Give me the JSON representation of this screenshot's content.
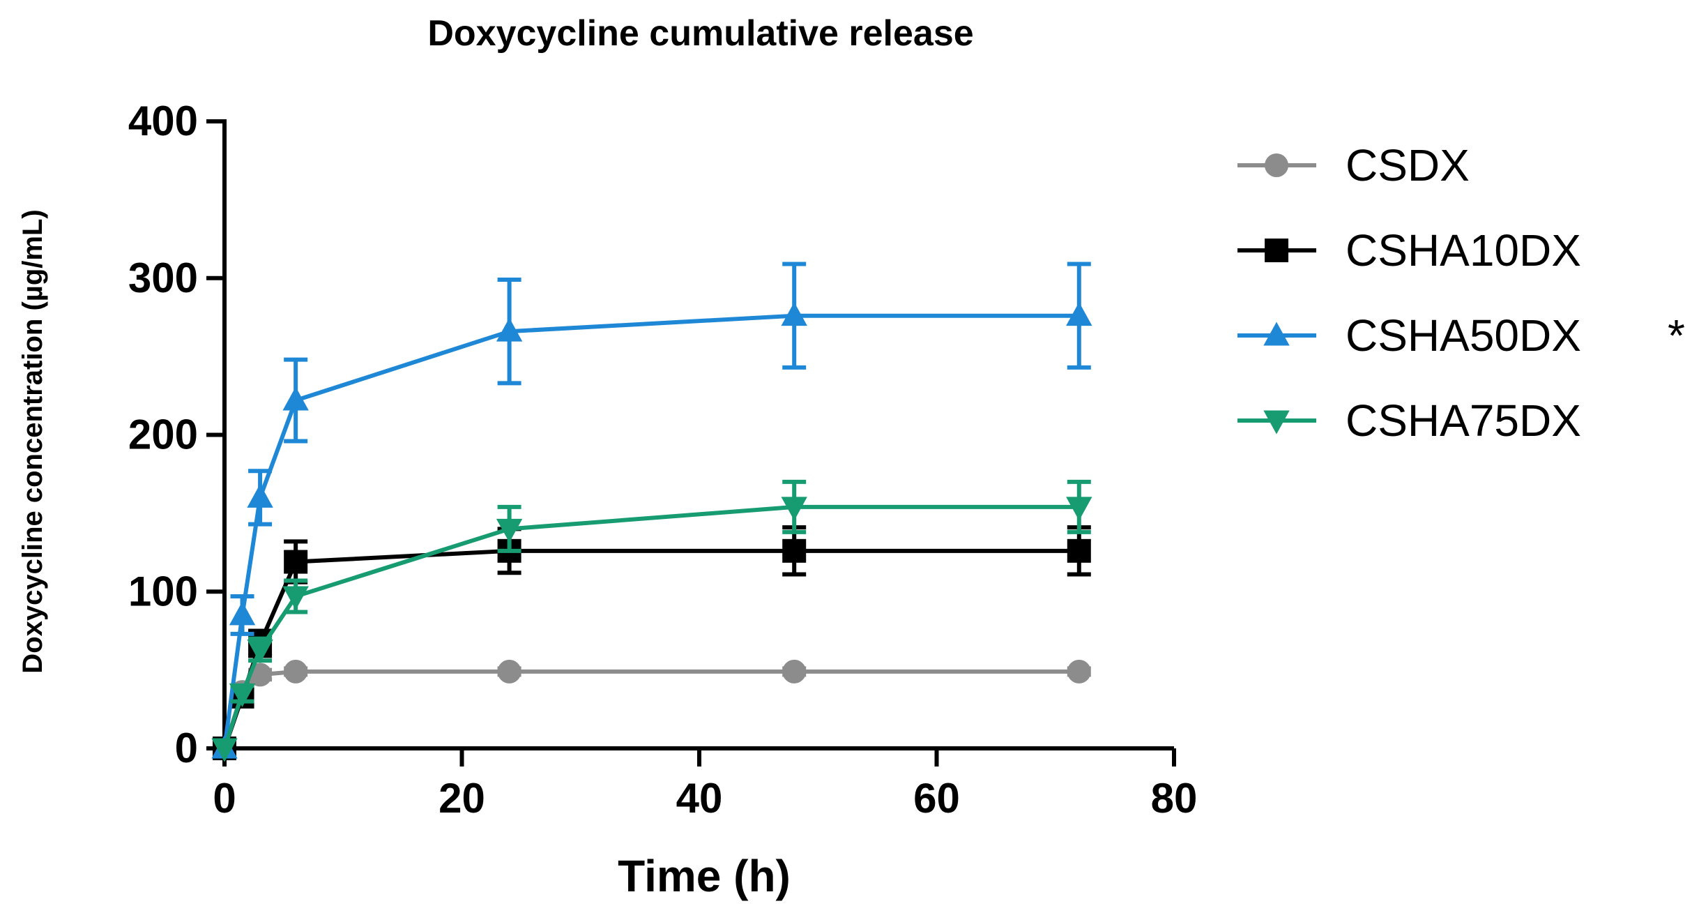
{
  "chart_data": {
    "type": "line",
    "title": "Doxycycline cumulative release",
    "xlabel": "Time (h)",
    "ylabel": "Doxycycline concentration (µg/mL)",
    "xlim": [
      0,
      80
    ],
    "ylim": [
      0,
      400
    ],
    "x_ticks": [
      "0",
      "20",
      "40",
      "60",
      "80"
    ],
    "y_ticks": [
      "0",
      "100",
      "200",
      "300",
      "400"
    ],
    "legend_position": "right",
    "series": [
      {
        "name": "CSDX",
        "marker": "circle",
        "color": "#8c8c8c",
        "x": [
          0,
          1.5,
          3,
          6,
          24,
          48,
          72
        ],
        "y": [
          0,
          36,
          47,
          49,
          49,
          49,
          49
        ],
        "err": [
          0,
          3,
          3,
          2,
          2,
          2,
          2
        ],
        "significance": ""
      },
      {
        "name": "CSHA10DX",
        "marker": "square",
        "color": "#000000",
        "x": [
          0,
          1.5,
          3,
          6,
          24,
          48,
          72
        ],
        "y": [
          0,
          33,
          67,
          119,
          126,
          126,
          126
        ],
        "err": [
          0,
          5,
          8,
          13,
          14,
          15,
          15
        ],
        "significance": ""
      },
      {
        "name": "CSHA50DX",
        "marker": "triangle-up",
        "color": "#1f88d6",
        "x": [
          0,
          1.5,
          3,
          6,
          24,
          48,
          72
        ],
        "y": [
          0,
          85,
          160,
          222,
          266,
          276,
          276
        ],
        "err": [
          0,
          12,
          17,
          26,
          33,
          33,
          33
        ],
        "significance": "*"
      },
      {
        "name": "CSHA75DX",
        "marker": "triangle-down",
        "color": "#179c72",
        "x": [
          0,
          1.5,
          3,
          6,
          24,
          48,
          72
        ],
        "y": [
          0,
          35,
          63,
          97,
          140,
          154,
          154
        ],
        "err": [
          0,
          5,
          7,
          10,
          14,
          16,
          16
        ],
        "significance": ""
      }
    ]
  }
}
